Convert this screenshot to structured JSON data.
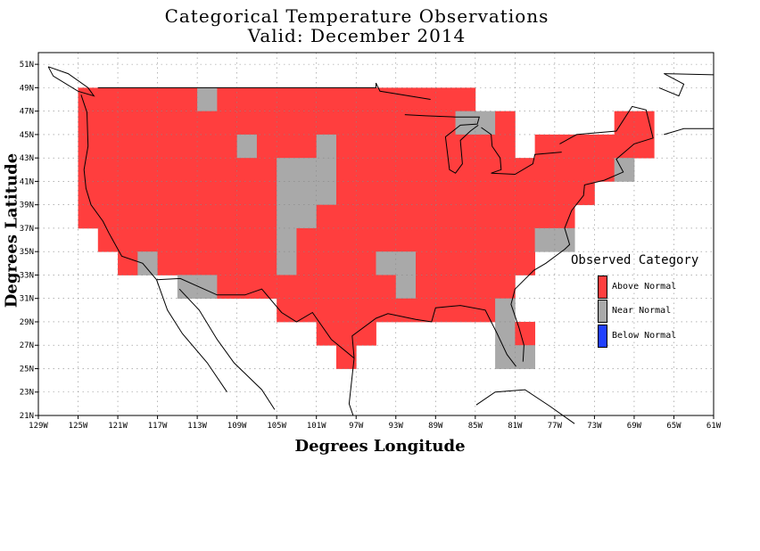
{
  "chart_data": {
    "type": "heatmap",
    "title": "Categorical Temperature Observations",
    "subtitle": "Valid: December 2014",
    "xlabel": "Degrees Longitude",
    "ylabel": "Degrees Latitude",
    "xlim": [
      -129,
      -61
    ],
    "ylim": [
      21,
      52
    ],
    "x_ticks": [
      "129W",
      "125W",
      "121W",
      "117W",
      "113W",
      "109W",
      "105W",
      "101W",
      "97W",
      "93W",
      "89W",
      "85W",
      "81W",
      "77W",
      "73W",
      "69W",
      "65W",
      "61W"
    ],
    "y_ticks": [
      "21N",
      "23N",
      "25N",
      "27N",
      "29N",
      "31N",
      "33N",
      "35N",
      "37N",
      "39N",
      "41N",
      "43N",
      "45N",
      "47N",
      "49N",
      "51N"
    ],
    "grid": true,
    "legend_title": "Observed Category",
    "legend_position": "right",
    "categories": [
      {
        "key": "A",
        "name": "Above Normal",
        "color": "#ff3e3e"
      },
      {
        "key": "N",
        "name": "Near Normal",
        "color": "#a9a9a9"
      },
      {
        "key": "B",
        "name": "Below Normal",
        "color": "#2040ff"
      }
    ],
    "cell_size_deg": 2,
    "cells": [
      {
        "lat": 48,
        "from": -125,
        "to": -113,
        "c": "A"
      },
      {
        "lat": 48,
        "from": -113,
        "to": -111,
        "c": "N"
      },
      {
        "lat": 48,
        "from": -111,
        "to": -85,
        "c": "A"
      },
      {
        "lat": 46,
        "from": -125,
        "to": -87,
        "c": "A"
      },
      {
        "lat": 46,
        "from": -87,
        "to": -83,
        "c": "N"
      },
      {
        "lat": 46,
        "from": -83,
        "to": -81,
        "c": "A"
      },
      {
        "lat": 46,
        "from": -71,
        "to": -67,
        "c": "A"
      },
      {
        "lat": 44,
        "from": -125,
        "to": -109,
        "c": "A"
      },
      {
        "lat": 44,
        "from": -109,
        "to": -107,
        "c": "N"
      },
      {
        "lat": 44,
        "from": -107,
        "to": -101,
        "c": "A"
      },
      {
        "lat": 44,
        "from": -101,
        "to": -99,
        "c": "N"
      },
      {
        "lat": 44,
        "from": -99,
        "to": -81,
        "c": "A"
      },
      {
        "lat": 44,
        "from": -79,
        "to": -67,
        "c": "A"
      },
      {
        "lat": 42,
        "from": -125,
        "to": -105,
        "c": "A"
      },
      {
        "lat": 42,
        "from": -105,
        "to": -99,
        "c": "N"
      },
      {
        "lat": 42,
        "from": -99,
        "to": -71,
        "c": "A"
      },
      {
        "lat": 42,
        "from": -71,
        "to": -69,
        "c": "N"
      },
      {
        "lat": 40,
        "from": -125,
        "to": -105,
        "c": "A"
      },
      {
        "lat": 40,
        "from": -105,
        "to": -99,
        "c": "N"
      },
      {
        "lat": 40,
        "from": -99,
        "to": -73,
        "c": "A"
      },
      {
        "lat": 38,
        "from": -125,
        "to": -105,
        "c": "A"
      },
      {
        "lat": 38,
        "from": -105,
        "to": -101,
        "c": "N"
      },
      {
        "lat": 38,
        "from": -101,
        "to": -75,
        "c": "A"
      },
      {
        "lat": 36,
        "from": -123,
        "to": -105,
        "c": "A"
      },
      {
        "lat": 36,
        "from": -105,
        "to": -103,
        "c": "N"
      },
      {
        "lat": 36,
        "from": -103,
        "to": -79,
        "c": "A"
      },
      {
        "lat": 36,
        "from": -79,
        "to": -75,
        "c": "N"
      },
      {
        "lat": 34,
        "from": -121,
        "to": -119,
        "c": "A"
      },
      {
        "lat": 34,
        "from": -119,
        "to": -117,
        "c": "N"
      },
      {
        "lat": 34,
        "from": -117,
        "to": -105,
        "c": "A"
      },
      {
        "lat": 34,
        "from": -105,
        "to": -103,
        "c": "N"
      },
      {
        "lat": 34,
        "from": -103,
        "to": -95,
        "c": "A"
      },
      {
        "lat": 34,
        "from": -95,
        "to": -91,
        "c": "N"
      },
      {
        "lat": 34,
        "from": -91,
        "to": -79,
        "c": "A"
      },
      {
        "lat": 32,
        "from": -115,
        "to": -111,
        "c": "N"
      },
      {
        "lat": 32,
        "from": -111,
        "to": -93,
        "c": "A"
      },
      {
        "lat": 32,
        "from": -93,
        "to": -91,
        "c": "N"
      },
      {
        "lat": 32,
        "from": -91,
        "to": -81,
        "c": "A"
      },
      {
        "lat": 30,
        "from": -105,
        "to": -83,
        "c": "A"
      },
      {
        "lat": 30,
        "from": -83,
        "to": -81,
        "c": "N"
      },
      {
        "lat": 28,
        "from": -101,
        "to": -95,
        "c": "A"
      },
      {
        "lat": 28,
        "from": -83,
        "to": -81,
        "c": "N"
      },
      {
        "lat": 28,
        "from": -81,
        "to": -79,
        "c": "A"
      },
      {
        "lat": 26,
        "from": -99,
        "to": -97,
        "c": "A"
      },
      {
        "lat": 26,
        "from": -83,
        "to": -79,
        "c": "N"
      }
    ]
  }
}
